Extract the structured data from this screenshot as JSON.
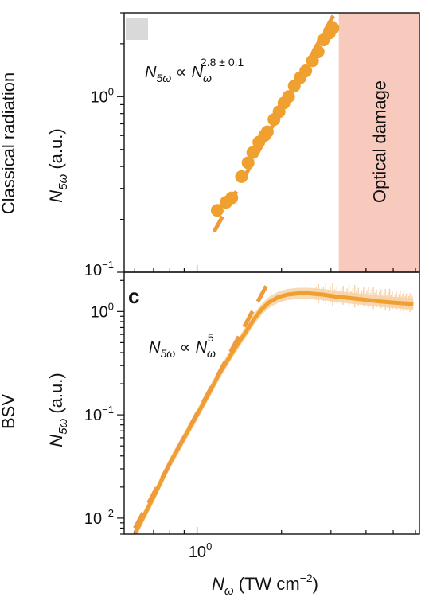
{
  "chart_data": [
    {
      "type": "scatter",
      "panel": "classical",
      "row_label": "Classical radiation",
      "ylabel_main": "N",
      "ylabel_sub": "5ω",
      "ylabel_unit": " (a.u.)",
      "yscale": "log",
      "xscale": "log",
      "xlim": [
        0.55,
        6.2
      ],
      "ylim": [
        0.1,
        3.0
      ],
      "yticks": [
        {
          "base": "10",
          "exp": "0",
          "value": 1
        },
        {
          "base": "10",
          "exp": "−1",
          "value": 0.1
        }
      ],
      "annotation": {
        "lhs_main": "N",
        "lhs_sub": "5ω",
        "rel": " ∝ ",
        "rhs_main": "N",
        "rhs_sub": "ω",
        "rhs_sup": "2.8 ± 0.1"
      },
      "shaded_region": {
        "label": "Optical damage",
        "x_start": 3.2,
        "x_end": 6.2,
        "color": "#f8c9bd"
      },
      "marker_color": "#f0a02e",
      "fit_color": "#ef9a3c",
      "fit": {
        "x": [
          1.15,
          3.1
        ],
        "y": [
          0.17,
          3.0
        ]
      },
      "series": [
        {
          "x": [
            1.18,
            1.27,
            1.33,
            1.44,
            1.52,
            1.58,
            1.66,
            1.74,
            1.78,
            1.88,
            1.96,
            2.04,
            2.12,
            2.22,
            2.33,
            2.44,
            2.58,
            2.7,
            2.82,
            2.96,
            3.05
          ],
          "y": [
            0.225,
            0.25,
            0.265,
            0.35,
            0.42,
            0.48,
            0.55,
            0.6,
            0.63,
            0.74,
            0.82,
            0.92,
            1.0,
            1.15,
            1.28,
            1.4,
            1.6,
            1.8,
            2.1,
            2.3,
            2.45
          ]
        }
      ]
    },
    {
      "type": "line",
      "panel": "c",
      "panel_letter": "c",
      "row_label": "BSV",
      "ylabel_main": "N",
      "ylabel_sub": "5ω",
      "ylabel_unit": " (a.u.)",
      "xlabel_main": "N",
      "xlabel_sub": "ω",
      "xlabel_unit_pre": " (TW cm",
      "xlabel_unit_sup": "−2",
      "xlabel_unit_post": ")",
      "yscale": "log",
      "xscale": "log",
      "xlim": [
        0.55,
        6.2
      ],
      "ylim": [
        0.007,
        2.4
      ],
      "yticks": [
        {
          "base": "10",
          "exp": "0",
          "value": 1
        },
        {
          "base": "10",
          "exp": "−1",
          "value": 0.1
        },
        {
          "base": "10",
          "exp": "−2",
          "value": 0.01
        }
      ],
      "xticks": [
        {
          "base": "10",
          "exp": "0",
          "value": 1
        }
      ],
      "annotation": {
        "lhs_main": "N",
        "lhs_sub": "5ω",
        "rel": " ∝ ",
        "rhs_main": "N",
        "rhs_sub": "ω",
        "rhs_sup": "5"
      },
      "line_color": "#f0a02e",
      "band_color": "#f7d2a8",
      "fit_color": "#ef9a3c",
      "fit": {
        "x": [
          0.6,
          1.8
        ],
        "y": [
          0.008,
          1.95
        ]
      },
      "series": [
        {
          "x": [
            0.6,
            0.7,
            0.8,
            0.9,
            1.0,
            1.1,
            1.2,
            1.35,
            1.5,
            1.6,
            1.7,
            1.8,
            1.95,
            2.1,
            2.3,
            2.5,
            2.8,
            3.1,
            3.5,
            4.0,
            4.5,
            5.0,
            5.5,
            5.9
          ],
          "y": [
            0.007,
            0.016,
            0.034,
            0.06,
            0.1,
            0.16,
            0.25,
            0.42,
            0.65,
            0.85,
            1.05,
            1.22,
            1.38,
            1.46,
            1.5,
            1.5,
            1.46,
            1.4,
            1.35,
            1.3,
            1.25,
            1.22,
            1.2,
            1.18
          ]
        }
      ]
    }
  ]
}
